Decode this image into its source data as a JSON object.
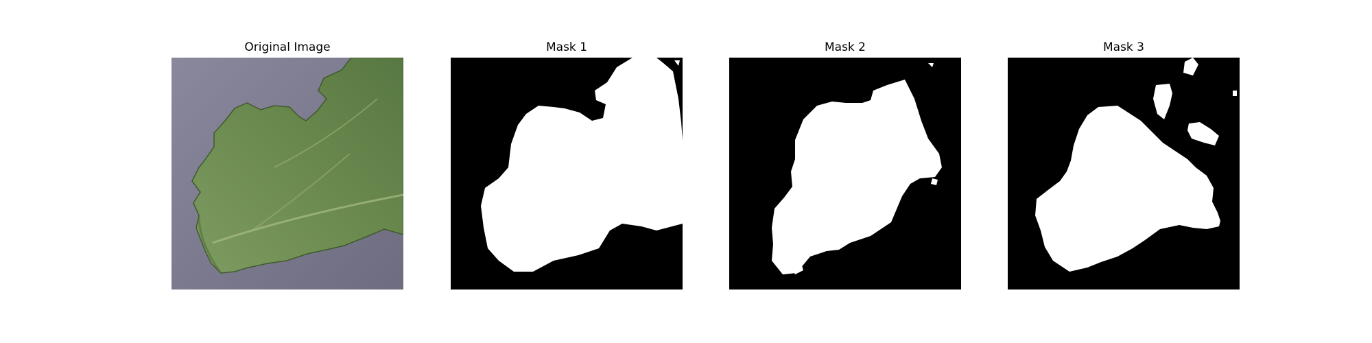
{
  "figure": {
    "background": "#ffffff",
    "panels": [
      {
        "title": "Original Image"
      },
      {
        "title": "Mask 1"
      },
      {
        "title": "Mask 2"
      },
      {
        "title": "Mask 3"
      }
    ]
  },
  "colors": {
    "photo_background": "#7d7b8f",
    "leaf": "#6b8a4f",
    "leaf_dark": "#4f6d38",
    "mask_background": "#000000",
    "mask_foreground": "#ffffff"
  }
}
